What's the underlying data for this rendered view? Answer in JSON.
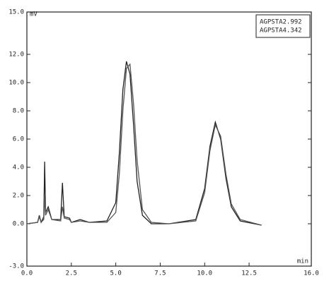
{
  "chart_data": {
    "type": "line",
    "y_label": "mV",
    "x_label": "min",
    "x": [
      0,
      0.6,
      0.7,
      0.8,
      0.95,
      1.0,
      1.05,
      1.2,
      1.4,
      1.9,
      2.0,
      2.1,
      2.4,
      2.5,
      3.0,
      3.5,
      4.5,
      5.0,
      5.2,
      5.4,
      5.6,
      5.8,
      6.0,
      6.2,
      6.5,
      7.0,
      8.0,
      9.5,
      10.0,
      10.3,
      10.6,
      10.9,
      11.2,
      11.5,
      12.0,
      13.2
    ],
    "series": [
      {
        "name": "AGPSTA2.992",
        "color": "#222222",
        "values": [
          0,
          0.1,
          0.6,
          0.1,
          0.5,
          4.4,
          0.8,
          1.2,
          0.3,
          0.3,
          2.9,
          0.5,
          0.4,
          0.1,
          0.3,
          0.1,
          0.2,
          1.5,
          5.0,
          9.5,
          11.5,
          10.6,
          7.0,
          3.0,
          0.6,
          0.0,
          0.0,
          0.3,
          2.5,
          5.5,
          7.2,
          6.0,
          3.2,
          1.2,
          0.2,
          -0.1
        ]
      },
      {
        "name": "AGPSTA4.342",
        "color": "#555555",
        "values": [
          0,
          0.1,
          0.5,
          0.1,
          0.3,
          2.0,
          0.6,
          1.0,
          0.3,
          0.2,
          1.2,
          0.4,
          0.3,
          0.1,
          0.2,
          0.1,
          0.1,
          0.8,
          3.5,
          8.0,
          11.0,
          11.3,
          8.5,
          4.5,
          1.0,
          0.1,
          0.0,
          0.2,
          2.2,
          5.2,
          7.0,
          6.2,
          3.5,
          1.4,
          0.3,
          -0.1
        ]
      }
    ],
    "xlim": [
      0,
      16
    ],
    "xticks": [
      {
        "value": 0,
        "label": "0.0"
      },
      {
        "value": 2.5,
        "label": "2.5"
      },
      {
        "value": 5,
        "label": "5.0"
      },
      {
        "value": 7.5,
        "label": "7.5"
      },
      {
        "value": 10,
        "label": "10.0"
      },
      {
        "value": 12.5,
        "label": "12.5"
      },
      {
        "value": 16,
        "label": "16.0"
      }
    ],
    "ylim": [
      -3,
      15
    ],
    "yticks": [
      {
        "value": -3,
        "label": "-3.0"
      },
      {
        "value": 0,
        "label": "0.0"
      },
      {
        "value": 2,
        "label": "2.0"
      },
      {
        "value": 4,
        "label": "4.0"
      },
      {
        "value": 6,
        "label": "6.0"
      },
      {
        "value": 8,
        "label": "8.0"
      },
      {
        "value": 10,
        "label": "10.0"
      },
      {
        "value": 12,
        "label": "12.0"
      },
      {
        "value": 15,
        "label": "15.0"
      }
    ],
    "grid": false,
    "legend": "top-right"
  }
}
